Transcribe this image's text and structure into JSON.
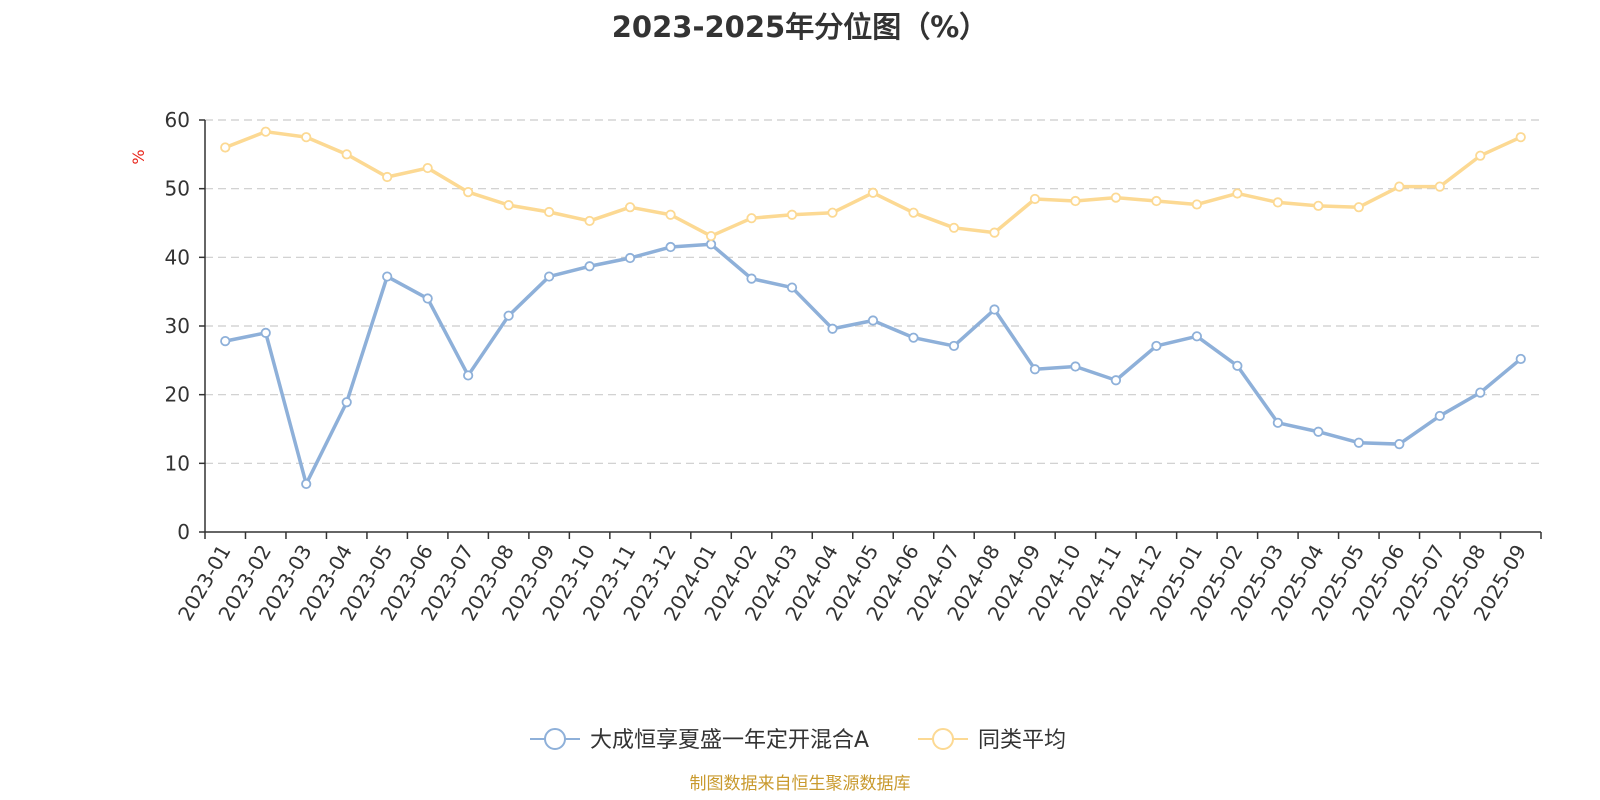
{
  "chart_data": {
    "type": "line",
    "title": "2023-2025年分位图（%）",
    "ylabel": "%",
    "xlabel": "",
    "ylim": [
      0,
      60
    ],
    "yticks": [
      0,
      10,
      20,
      30,
      40,
      50,
      60
    ],
    "grid": true,
    "legend_position": "bottom-center",
    "categories": [
      "2023-01",
      "2023-02",
      "2023-03",
      "2023-04",
      "2023-05",
      "2023-06",
      "2023-07",
      "2023-08",
      "2023-09",
      "2023-10",
      "2023-11",
      "2023-12",
      "2024-01",
      "2024-02",
      "2024-03",
      "2024-04",
      "2024-05",
      "2024-06",
      "2024-07",
      "2024-08",
      "2024-09",
      "2024-10",
      "2024-11",
      "2024-12",
      "2025-01",
      "2025-02",
      "2025-03",
      "2025-04",
      "2025-05",
      "2025-06",
      "2025-07",
      "2025-08",
      "2025-09"
    ],
    "series": [
      {
        "name": "大成恒享夏盛一年定开混合A",
        "color": "#8eb0d9",
        "values": [
          27.8,
          29.0,
          7.0,
          18.9,
          37.2,
          34.0,
          22.8,
          31.5,
          37.2,
          38.7,
          39.9,
          41.5,
          41.9,
          36.9,
          35.6,
          29.6,
          30.8,
          28.3,
          27.1,
          32.4,
          23.7,
          24.1,
          22.1,
          27.1,
          28.5,
          24.2,
          15.9,
          14.6,
          13.0,
          12.8,
          16.9,
          20.3,
          25.2
        ]
      },
      {
        "name": "同类平均",
        "color": "#fcd993",
        "values": [
          56.0,
          58.3,
          57.5,
          55.0,
          51.7,
          53.0,
          49.5,
          47.6,
          46.6,
          45.3,
          47.3,
          46.2,
          43.1,
          45.7,
          46.2,
          46.5,
          49.4,
          46.5,
          44.3,
          43.6,
          48.5,
          48.2,
          48.7,
          48.2,
          47.7,
          49.3,
          48.0,
          47.5,
          47.3,
          50.3,
          50.3,
          54.8,
          57.5
        ]
      }
    ]
  },
  "source": "制图数据来自恒生聚源数据库",
  "colors": {
    "source_text": "#c99a2e",
    "ylabel": "#e8251b",
    "axis": "#333333",
    "grid": "#cccccc"
  }
}
